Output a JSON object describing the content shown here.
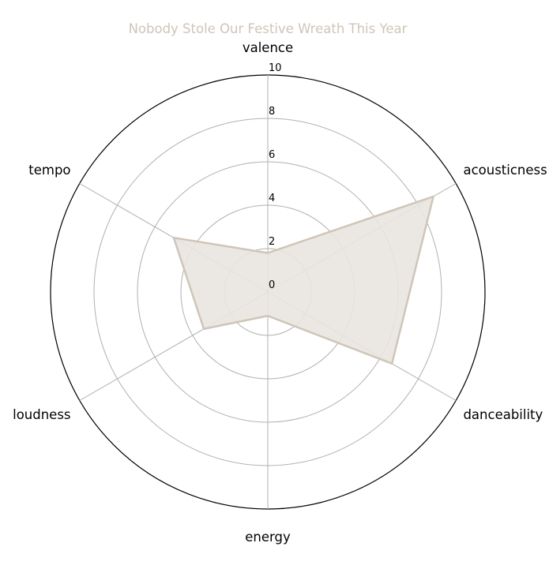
{
  "chart_data": {
    "type": "radar",
    "title": "Nobody Stole Our Festive Wreath This Year",
    "categories": [
      "valence",
      "acousticness",
      "danceability",
      "energy",
      "tempo",
      "loudness"
    ],
    "axis_order": [
      "valence",
      "acousticness",
      "danceability",
      "energy",
      "loudness",
      "tempo"
    ],
    "values": {
      "valence": 1.8,
      "acousticness": 8.8,
      "danceability": 6.6,
      "energy": 1.1,
      "loudness": 3.4,
      "tempo": 5.0
    },
    "rlim": [
      0,
      10
    ],
    "rticks": [
      "0",
      "2",
      "4",
      "6",
      "8",
      "10"
    ],
    "grid": true,
    "colors": {
      "series_fill": "#e9e4df",
      "series_line": "#cfc5b8",
      "grid": "#b0b0b0",
      "outer": "#000000",
      "title": "#cfc5b8"
    }
  }
}
